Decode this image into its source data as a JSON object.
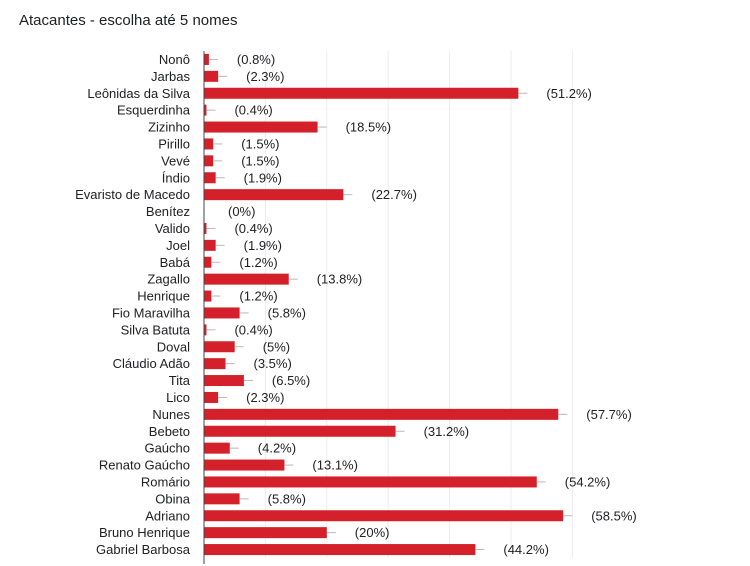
{
  "title": "Atacantes - escolha até 5 nomes",
  "chart_data": {
    "type": "bar",
    "orientation": "horizontal",
    "title": "Atacantes - escolha até 5 nomes",
    "xlabel": "",
    "ylabel": "",
    "xlim": [
      0,
      64
    ],
    "grid": true,
    "bar_color": "#d4202a",
    "categories": [
      "Nonô",
      "Jarbas",
      "Leônidas da Silva",
      "Esquerdinha",
      "Zizinho",
      "Pirillo",
      "Vevé",
      "Índio",
      "Evaristo de Macedo",
      "Benítez",
      "Valido",
      "Joel",
      "Babá",
      "Zagallo",
      "Henrique",
      "Fio Maravilha",
      "Silva Batuta",
      "Doval",
      "Cláudio Adão",
      "Tita",
      "Lico",
      "Nunes",
      "Bebeto",
      "Gaúcho",
      "Renato Gaúcho",
      "Romário",
      "Obina",
      "Adriano",
      "Bruno Henrique",
      "Gabriel Barbosa"
    ],
    "values": [
      0.8,
      2.3,
      51.2,
      0.4,
      18.5,
      1.5,
      1.5,
      1.9,
      22.7,
      0,
      0.4,
      1.9,
      1.2,
      13.8,
      1.2,
      5.8,
      0.4,
      5,
      3.5,
      6.5,
      2.3,
      57.7,
      31.2,
      4.2,
      13.1,
      54.2,
      5.8,
      58.5,
      20,
      44.2
    ],
    "value_labels": [
      "(0.8%)",
      "(2.3%)",
      "(51.2%)",
      "(0.4%)",
      "(18.5%)",
      "(1.5%)",
      "(1.5%)",
      "(1.9%)",
      "(22.7%)",
      "(0%)",
      "(0.4%)",
      "(1.9%)",
      "(1.2%)",
      "(13.8%)",
      "(1.2%)",
      "(5.8%)",
      "(0.4%)",
      "(5%)",
      "(3.5%)",
      "(6.5%)",
      "(2.3%)",
      "(57.7%)",
      "(31.2%)",
      "(4.2%)",
      "(13.1%)",
      "(54.2%)",
      "(5.8%)",
      "(58.5%)",
      "(20%)",
      "(44.2%)"
    ]
  }
}
